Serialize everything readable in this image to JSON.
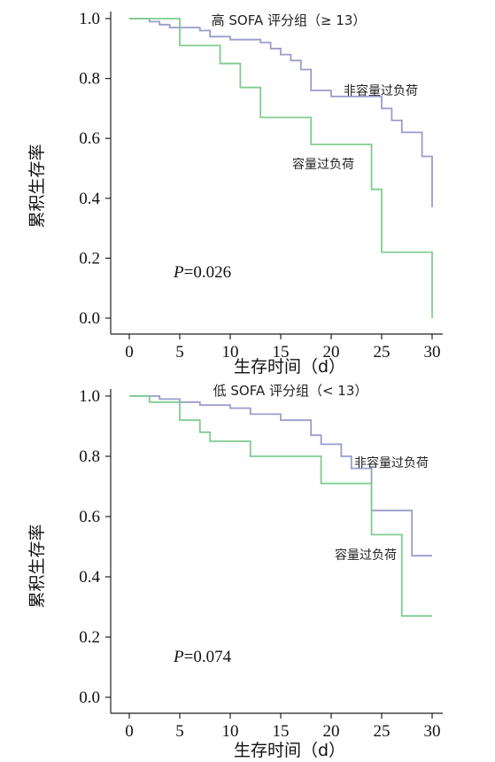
{
  "chart_data": [
    {
      "type": "line",
      "title": "高 SOFA 评分组（≥ 13）",
      "xlabel": "生存时间（d）",
      "ylabel": "累积生存率",
      "xlim": [
        0,
        30
      ],
      "ylim": [
        0.0,
        1.0
      ],
      "xticks": [
        0,
        5,
        10,
        15,
        20,
        25,
        30
      ],
      "yticks": [
        0.0,
        0.2,
        0.4,
        0.6,
        0.8,
        1.0
      ],
      "xtick_labels": [
        "0",
        "5",
        "10",
        "15",
        "20",
        "25",
        "30"
      ],
      "ytick_labels": [
        "0.0",
        "0.2",
        "0.4",
        "0.6",
        "0.8",
        "1.0"
      ],
      "annotation": {
        "p_label": "P",
        "p_value": "=0.026"
      },
      "series": [
        {
          "name": "非容量过负荷",
          "color": "#9a9ccc",
          "step": true,
          "x": [
            0,
            2,
            3,
            4,
            5,
            7,
            8,
            10,
            12,
            13,
            14,
            15,
            16,
            17,
            18,
            20,
            22,
            25,
            26,
            27,
            29,
            30
          ],
          "y": [
            1.0,
            0.99,
            0.98,
            0.97,
            0.97,
            0.96,
            0.94,
            0.93,
            0.93,
            0.92,
            0.9,
            0.88,
            0.86,
            0.83,
            0.76,
            0.74,
            0.74,
            0.7,
            0.66,
            0.62,
            0.54,
            0.37
          ]
        },
        {
          "name": "容量过负荷",
          "color": "#7fcc90",
          "step": true,
          "x": [
            0,
            5,
            9,
            11,
            13,
            18,
            24,
            25,
            30
          ],
          "y": [
            1.0,
            0.91,
            0.85,
            0.77,
            0.67,
            0.58,
            0.43,
            0.22,
            0.0
          ]
        }
      ]
    },
    {
      "type": "line",
      "title": "低 SOFA 评分组（< 13）",
      "xlabel": "生存时间（d）",
      "ylabel": "累积生存率",
      "xlim": [
        0,
        30
      ],
      "ylim": [
        0.0,
        1.0
      ],
      "xticks": [
        0,
        5,
        10,
        15,
        20,
        25,
        30
      ],
      "yticks": [
        0.0,
        0.2,
        0.4,
        0.6,
        0.8,
        1.0
      ],
      "xtick_labels": [
        "0",
        "5",
        "10",
        "15",
        "20",
        "25",
        "30"
      ],
      "ytick_labels": [
        "0.0",
        "0.2",
        "0.4",
        "0.6",
        "0.8",
        "1.0"
      ],
      "annotation": {
        "p_label": "P",
        "p_value": "=0.074"
      },
      "series": [
        {
          "name": "非容量过负荷",
          "color": "#9a9ccc",
          "step": true,
          "x": [
            0,
            3,
            5,
            7,
            10,
            12,
            15,
            18,
            19,
            21,
            22,
            24,
            28,
            30
          ],
          "y": [
            1.0,
            0.99,
            0.98,
            0.97,
            0.96,
            0.94,
            0.92,
            0.87,
            0.84,
            0.8,
            0.76,
            0.62,
            0.47,
            0.47
          ]
        },
        {
          "name": "容量过负荷",
          "color": "#7fcc90",
          "step": true,
          "x": [
            0,
            2,
            5,
            7,
            8,
            12,
            19,
            24,
            27,
            30
          ],
          "y": [
            1.0,
            0.98,
            0.92,
            0.88,
            0.85,
            0.8,
            0.71,
            0.54,
            0.27,
            0.27
          ]
        }
      ]
    }
  ]
}
